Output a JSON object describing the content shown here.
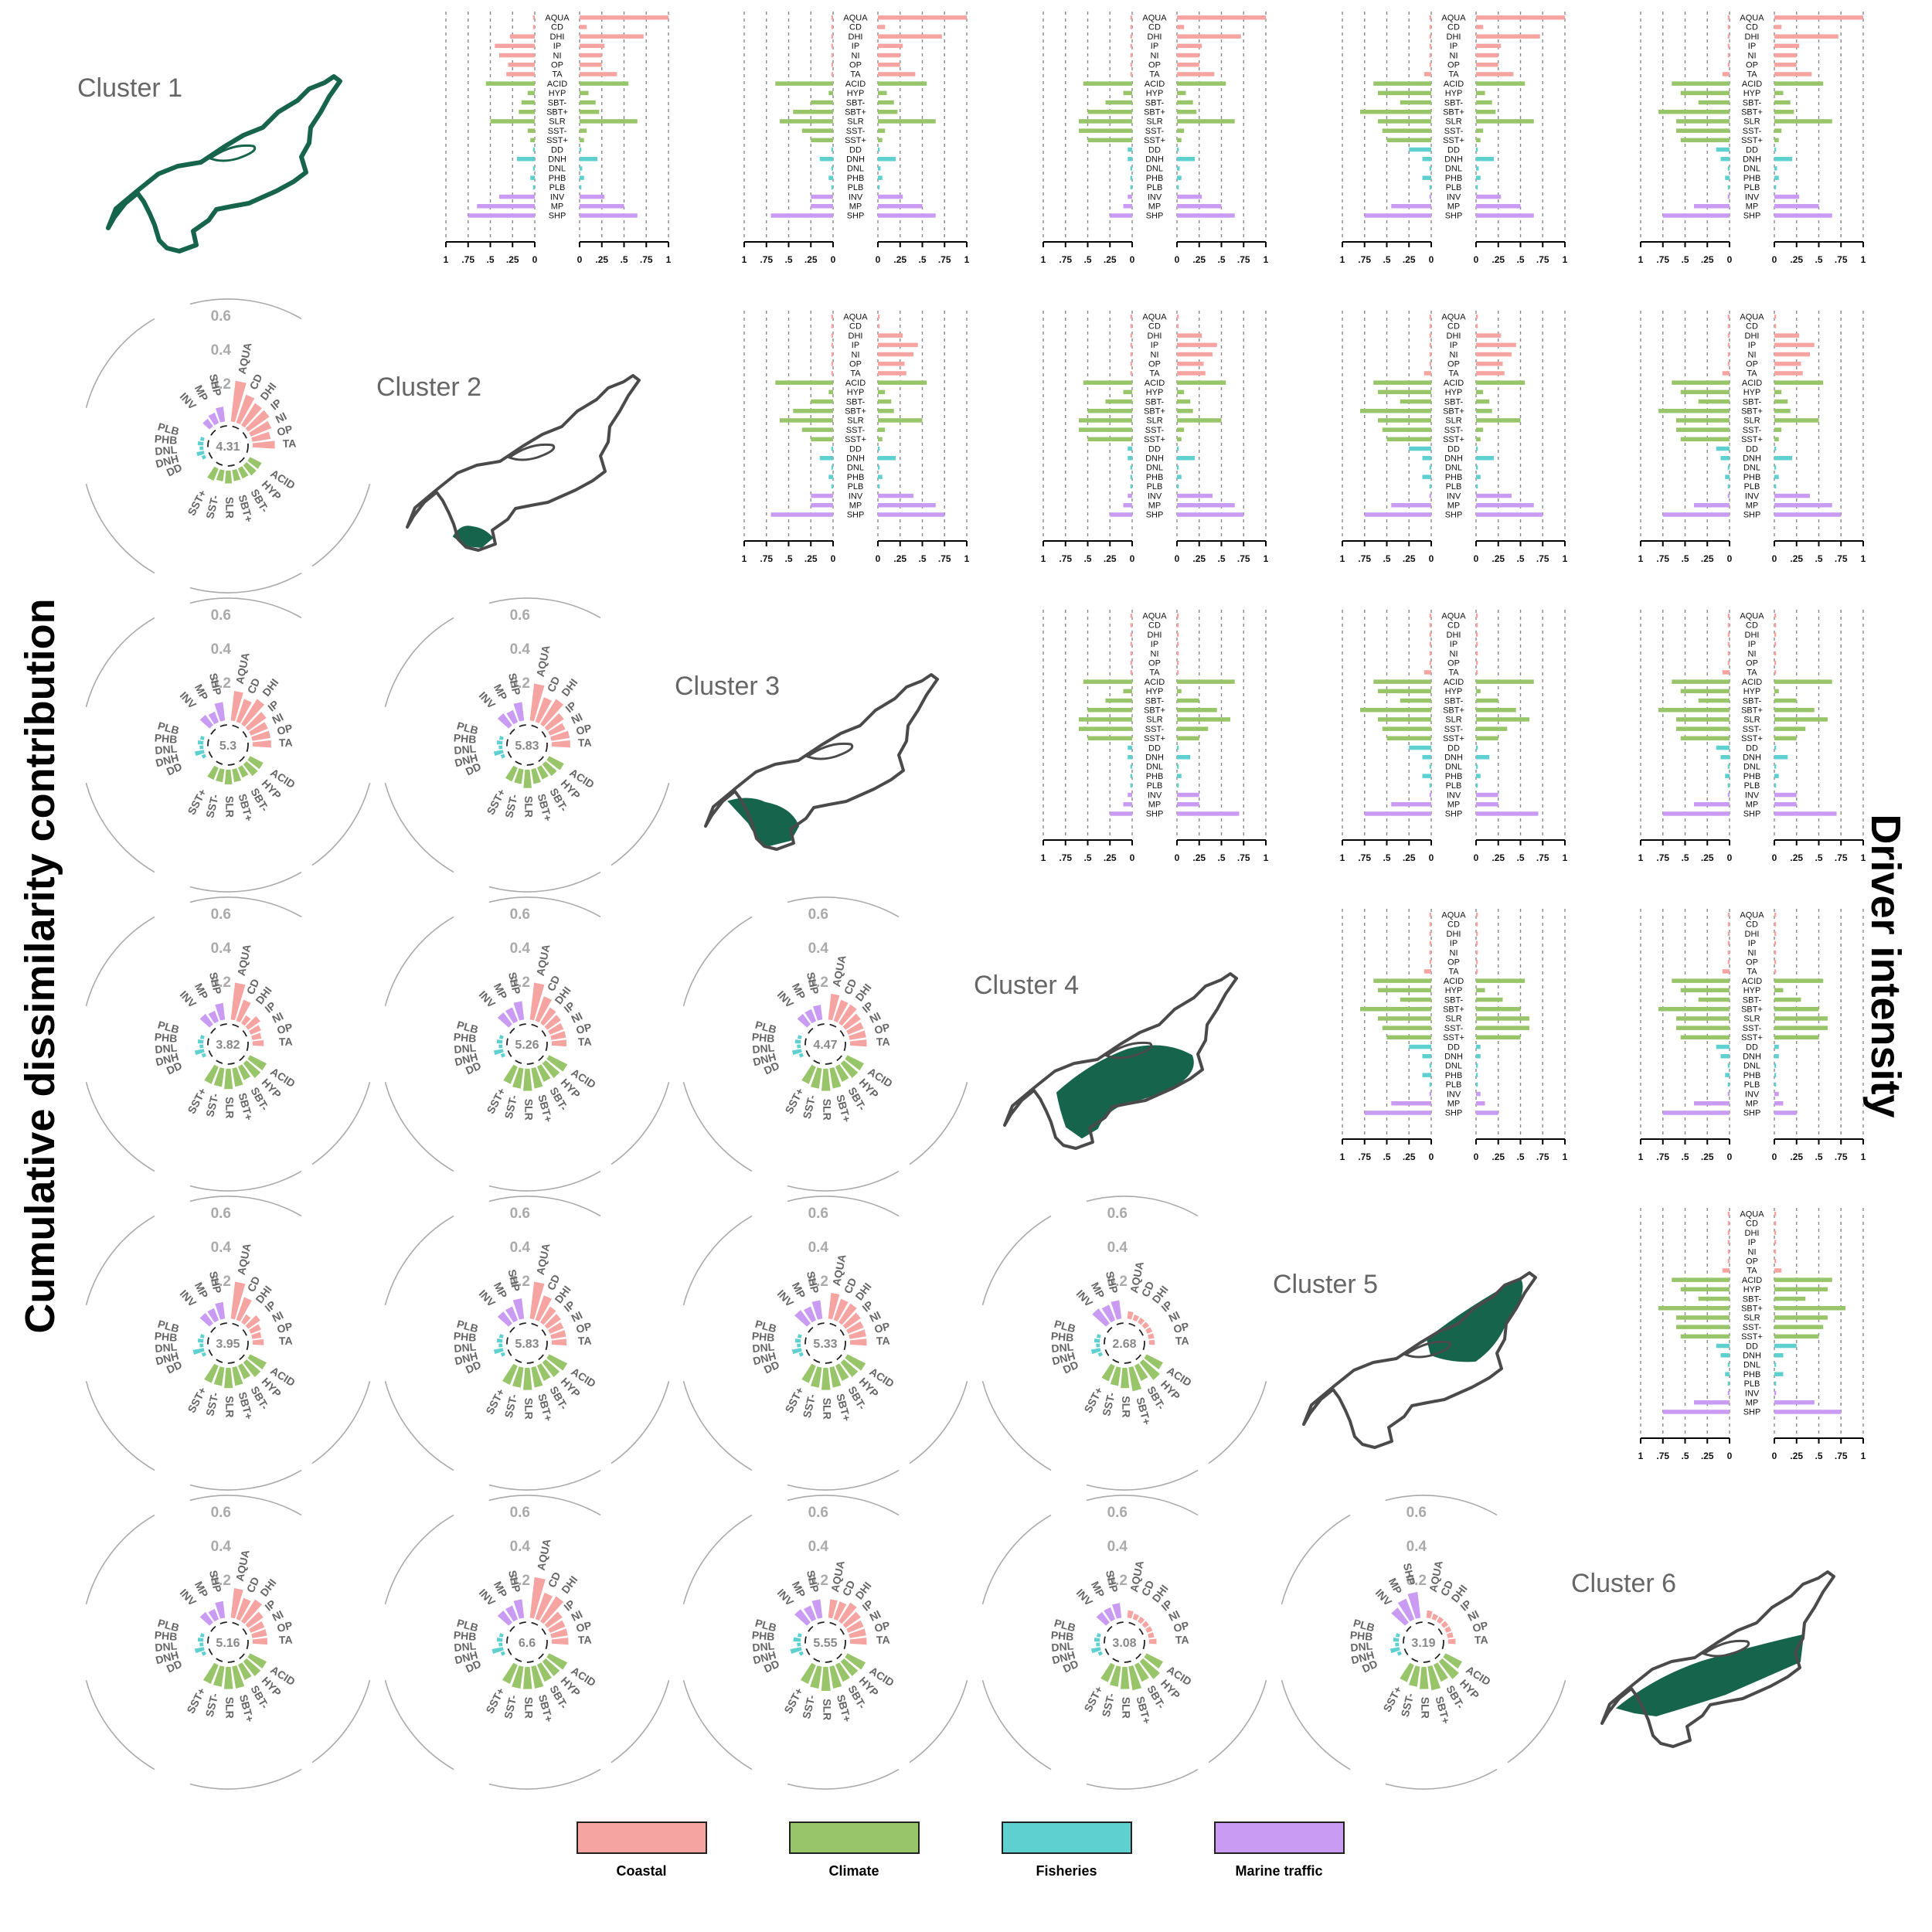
{
  "figure": {
    "left_title": "Cumulative dissimilarity contribution",
    "right_title": "Driver intensity"
  },
  "colors": {
    "coastal": "#F6A4A1",
    "climate": "#99C56A",
    "fisheries": "#5FD0D0",
    "marine_traffic": "#C99BF2",
    "map_fill": "#17644C",
    "map_outline": "#4A4A4A",
    "radial_text": "#666666",
    "radial_scale_text": "#AAAAAA"
  },
  "legend": [
    {
      "key": "coastal",
      "label": "Coastal"
    },
    {
      "key": "climate",
      "label": "Climate"
    },
    {
      "key": "fisheries",
      "label": "Fisheries"
    },
    {
      "key": "marine_traffic",
      "label": "Marine traffic"
    }
  ],
  "chart_data": {
    "type": "bar",
    "title": "",
    "clusters": [
      "Cluster 1",
      "Cluster 2",
      "Cluster 3",
      "Cluster 4",
      "Cluster 5",
      "Cluster 6"
    ],
    "drivers": [
      "AQUA",
      "CD",
      "DHI",
      "IP",
      "NI",
      "OP",
      "TA",
      "ACID",
      "HYP",
      "SBT-",
      "SBT+",
      "SLR",
      "SST-",
      "SST+",
      "DD",
      "DNH",
      "DNL",
      "PHB",
      "PLB",
      "INV",
      "MP",
      "SHP"
    ],
    "driver_groups": [
      "coastal",
      "coastal",
      "coastal",
      "coastal",
      "coastal",
      "coastal",
      "coastal",
      "climate",
      "climate",
      "climate",
      "climate",
      "climate",
      "climate",
      "climate",
      "fisheries",
      "fisheries",
      "fisheries",
      "fisheries",
      "fisheries",
      "marine_traffic",
      "marine_traffic",
      "marine_traffic"
    ],
    "driver_intensity": {
      "x_tick_labels": [
        "1",
        ".75",
        ".5",
        ".25",
        "0",
        "0",
        ".25",
        ".5",
        ".75",
        "1"
      ],
      "xlim": [
        0,
        1
      ],
      "values": [
        [
          1.0,
          0.08,
          0.72,
          0.28,
          0.25,
          0.25,
          0.42,
          0.55,
          0.1,
          0.18,
          0.22,
          0.65,
          0.08,
          0.05,
          0.02,
          0.2,
          0.03,
          0.05,
          0.02,
          0.28,
          0.5,
          0.65
        ],
        [
          0.02,
          0.02,
          0.28,
          0.45,
          0.4,
          0.3,
          0.32,
          0.55,
          0.08,
          0.15,
          0.18,
          0.5,
          0.08,
          0.05,
          0.02,
          0.2,
          0.02,
          0.05,
          0.02,
          0.4,
          0.65,
          0.75
        ],
        [
          0.02,
          0.02,
          0.02,
          0.02,
          0.02,
          0.02,
          0.02,
          0.65,
          0.05,
          0.25,
          0.45,
          0.6,
          0.35,
          0.25,
          0.02,
          0.15,
          0.02,
          0.05,
          0.02,
          0.25,
          0.25,
          0.7
        ],
        [
          0.02,
          0.02,
          0.02,
          0.02,
          0.02,
          0.02,
          0.02,
          0.55,
          0.1,
          0.3,
          0.5,
          0.6,
          0.6,
          0.5,
          0.05,
          0.05,
          0.02,
          0.02,
          0.02,
          0.05,
          0.1,
          0.25
        ],
        [
          0.02,
          0.02,
          0.02,
          0.02,
          0.02,
          0.02,
          0.08,
          0.65,
          0.6,
          0.35,
          0.8,
          0.6,
          0.55,
          0.5,
          0.25,
          0.1,
          0.02,
          0.1,
          0.02,
          0.02,
          0.45,
          0.75
        ],
        [
          0.02,
          0.02,
          0.02,
          0.02,
          0.02,
          0.02,
          0.08,
          0.65,
          0.55,
          0.35,
          0.8,
          0.6,
          0.6,
          0.55,
          0.15,
          0.1,
          0.02,
          0.05,
          0.02,
          0.02,
          0.4,
          0.75
        ]
      ]
    },
    "dissimilarity": {
      "radial_scale_labels": [
        "0.2",
        "0.4",
        "0.6"
      ],
      "rlim": [
        0,
        0.6
      ],
      "pairs": [
        {
          "row": 2,
          "col": 1,
          "total": "4.31",
          "values": [
            0.22,
            0.16,
            0.14,
            0.14,
            0.12,
            0.1,
            0.12,
            0.07,
            0.07,
            0.06,
            0.06,
            0.07,
            0.06,
            0.07,
            0.02,
            0.04,
            0.02,
            0.03,
            0.02,
            0.05,
            0.06,
            0.08
          ]
        },
        {
          "row": 3,
          "col": 1,
          "total": "5.3",
          "values": [
            0.16,
            0.13,
            0.16,
            0.12,
            0.1,
            0.1,
            0.1,
            0.08,
            0.08,
            0.06,
            0.07,
            0.08,
            0.07,
            0.07,
            0.02,
            0.05,
            0.02,
            0.03,
            0.02,
            0.07,
            0.06,
            0.1
          ]
        },
        {
          "row": 3,
          "col": 2,
          "total": "5.83",
          "values": [
            0.2,
            0.14,
            0.16,
            0.11,
            0.09,
            0.1,
            0.1,
            0.09,
            0.08,
            0.07,
            0.08,
            0.1,
            0.08,
            0.08,
            0.02,
            0.05,
            0.02,
            0.03,
            0.02,
            0.08,
            0.07,
            0.1
          ]
        },
        {
          "row": 4,
          "col": 1,
          "total": "3.82",
          "values": [
            0.2,
            0.12,
            0.05,
            0.08,
            0.06,
            0.05,
            0.06,
            0.1,
            0.1,
            0.08,
            0.1,
            0.11,
            0.1,
            0.1,
            0.02,
            0.05,
            0.02,
            0.03,
            0.02,
            0.07,
            0.06,
            0.09
          ]
        },
        {
          "row": 4,
          "col": 2,
          "total": "5.26",
          "values": [
            0.2,
            0.14,
            0.1,
            0.09,
            0.08,
            0.08,
            0.08,
            0.11,
            0.1,
            0.09,
            0.11,
            0.12,
            0.11,
            0.1,
            0.02,
            0.05,
            0.02,
            0.03,
            0.02,
            0.08,
            0.08,
            0.1
          ]
        },
        {
          "row": 4,
          "col": 3,
          "total": "4.47",
          "values": [
            0.14,
            0.12,
            0.12,
            0.1,
            0.09,
            0.09,
            0.09,
            0.1,
            0.1,
            0.09,
            0.11,
            0.12,
            0.11,
            0.1,
            0.02,
            0.05,
            0.02,
            0.03,
            0.02,
            0.07,
            0.07,
            0.08
          ]
        },
        {
          "row": 5,
          "col": 1,
          "total": "3.95",
          "values": [
            0.2,
            0.13,
            0.05,
            0.08,
            0.06,
            0.05,
            0.06,
            0.1,
            0.1,
            0.08,
            0.1,
            0.11,
            0.1,
            0.1,
            0.02,
            0.06,
            0.02,
            0.03,
            0.02,
            0.07,
            0.07,
            0.09
          ]
        },
        {
          "row": 5,
          "col": 2,
          "total": "5.83",
          "values": [
            0.2,
            0.14,
            0.1,
            0.09,
            0.08,
            0.08,
            0.08,
            0.11,
            0.1,
            0.09,
            0.11,
            0.12,
            0.11,
            0.11,
            0.02,
            0.05,
            0.02,
            0.03,
            0.02,
            0.08,
            0.08,
            0.11
          ]
        },
        {
          "row": 5,
          "col": 3,
          "total": "5.33",
          "values": [
            0.14,
            0.12,
            0.12,
            0.1,
            0.09,
            0.09,
            0.09,
            0.11,
            0.1,
            0.09,
            0.11,
            0.12,
            0.11,
            0.1,
            0.02,
            0.05,
            0.02,
            0.03,
            0.02,
            0.09,
            0.08,
            0.1
          ]
        },
        {
          "row": 5,
          "col": 4,
          "total": "2.68",
          "values": [
            0.04,
            0.03,
            0.03,
            0.03,
            0.03,
            0.03,
            0.03,
            0.1,
            0.12,
            0.09,
            0.13,
            0.11,
            0.1,
            0.09,
            0.02,
            0.05,
            0.02,
            0.03,
            0.02,
            0.1,
            0.09,
            0.1
          ]
        },
        {
          "row": 6,
          "col": 1,
          "total": "5.16",
          "values": [
            0.16,
            0.12,
            0.14,
            0.1,
            0.08,
            0.08,
            0.08,
            0.1,
            0.1,
            0.09,
            0.12,
            0.12,
            0.11,
            0.11,
            0.02,
            0.05,
            0.02,
            0.03,
            0.02,
            0.07,
            0.06,
            0.09
          ]
        },
        {
          "row": 6,
          "col": 2,
          "total": "6.6",
          "values": [
            0.22,
            0.15,
            0.16,
            0.1,
            0.09,
            0.09,
            0.09,
            0.11,
            0.1,
            0.1,
            0.12,
            0.12,
            0.12,
            0.11,
            0.02,
            0.06,
            0.02,
            0.03,
            0.02,
            0.08,
            0.08,
            0.1
          ]
        },
        {
          "row": 6,
          "col": 3,
          "total": "5.55",
          "values": [
            0.1,
            0.1,
            0.12,
            0.1,
            0.09,
            0.09,
            0.09,
            0.11,
            0.1,
            0.1,
            0.12,
            0.13,
            0.12,
            0.11,
            0.02,
            0.06,
            0.02,
            0.04,
            0.02,
            0.09,
            0.08,
            0.1
          ]
        },
        {
          "row": 6,
          "col": 4,
          "total": "3.08",
          "values": [
            0.04,
            0.03,
            0.03,
            0.03,
            0.03,
            0.03,
            0.04,
            0.1,
            0.12,
            0.1,
            0.13,
            0.12,
            0.11,
            0.1,
            0.02,
            0.05,
            0.02,
            0.03,
            0.02,
            0.07,
            0.07,
            0.08
          ]
        },
        {
          "row": 6,
          "col": 5,
          "total": "3.19",
          "values": [
            0.04,
            0.03,
            0.03,
            0.03,
            0.03,
            0.03,
            0.04,
            0.1,
            0.12,
            0.1,
            0.13,
            0.12,
            0.11,
            0.1,
            0.02,
            0.05,
            0.02,
            0.03,
            0.02,
            0.1,
            0.12,
            0.14
          ]
        }
      ]
    }
  }
}
